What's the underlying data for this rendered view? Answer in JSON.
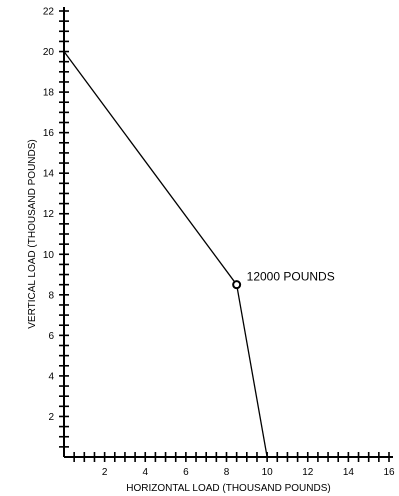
{
  "chart_data": {
    "type": "line",
    "title": "",
    "xlabel": "HORIZONTAL LOAD (THOUSAND POUNDS)",
    "ylabel": "VERTICAL LOAD (THOUSAND POUNDS)",
    "xlim": [
      0,
      16
    ],
    "ylim": [
      0,
      22
    ],
    "x_ticks": [
      2,
      4,
      6,
      8,
      10,
      12,
      14,
      16
    ],
    "y_ticks": [
      2,
      4,
      6,
      8,
      10,
      12,
      14,
      16,
      18,
      20,
      22
    ],
    "minor_tick_step": 0.5,
    "grid": false,
    "series": [
      {
        "x": [
          0,
          8.5,
          10
        ],
        "y": [
          20,
          8.5,
          0
        ]
      }
    ],
    "marker": {
      "x": 8.5,
      "y": 8.5
    },
    "annotation": {
      "text": "12000 POUNDS",
      "x": 8.5,
      "y": 8.5
    },
    "color": "#000000"
  }
}
